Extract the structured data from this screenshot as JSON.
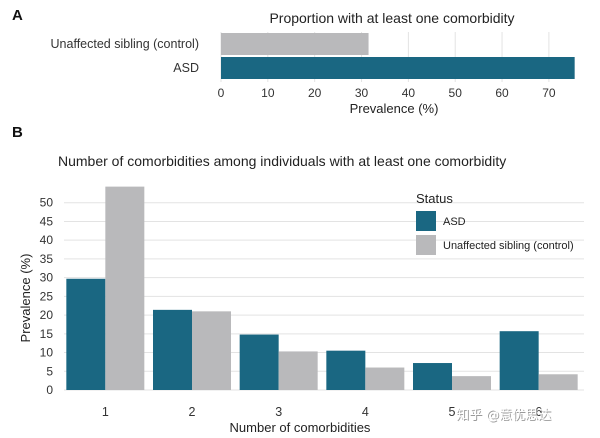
{
  "colors": {
    "asd": "#1a6782",
    "control": "#b9b9bb",
    "grid": "#e3e3e3"
  },
  "watermark": "知乎 @意优思达",
  "chart_data": [
    {
      "panel": "A",
      "type": "bar",
      "orientation": "horizontal",
      "title": "Proportion with at least one comorbidity",
      "xlabel": "Prevalence (%)",
      "ylabel": "",
      "xlim": [
        0,
        76
      ],
      "xticks": [
        0,
        10,
        20,
        30,
        40,
        50,
        60,
        70
      ],
      "categories": [
        "Unaffected sibling (control)",
        "ASD"
      ],
      "values": [
        31.5,
        75.5
      ],
      "grid": true
    },
    {
      "panel": "B",
      "type": "bar",
      "orientation": "vertical",
      "title": "Number of comorbidities among individuals with at least one comorbidity",
      "xlabel": "Number of comorbidities",
      "ylabel": "Prevalence (%)",
      "ylim": [
        0,
        55
      ],
      "yticks": [
        0,
        5,
        10,
        15,
        20,
        25,
        30,
        35,
        40,
        45,
        50
      ],
      "categories": [
        "1",
        "2",
        "3",
        "4",
        "5",
        "6"
      ],
      "legend_title": "Status",
      "legend_position": "right",
      "grid": true,
      "series": [
        {
          "name": "ASD",
          "values": [
            29.7,
            21.4,
            14.8,
            10.5,
            7.2,
            15.7
          ]
        },
        {
          "name": "Unaffected sibling (control)",
          "values": [
            54.3,
            21.0,
            10.3,
            6.0,
            3.7,
            4.2
          ]
        }
      ]
    }
  ]
}
